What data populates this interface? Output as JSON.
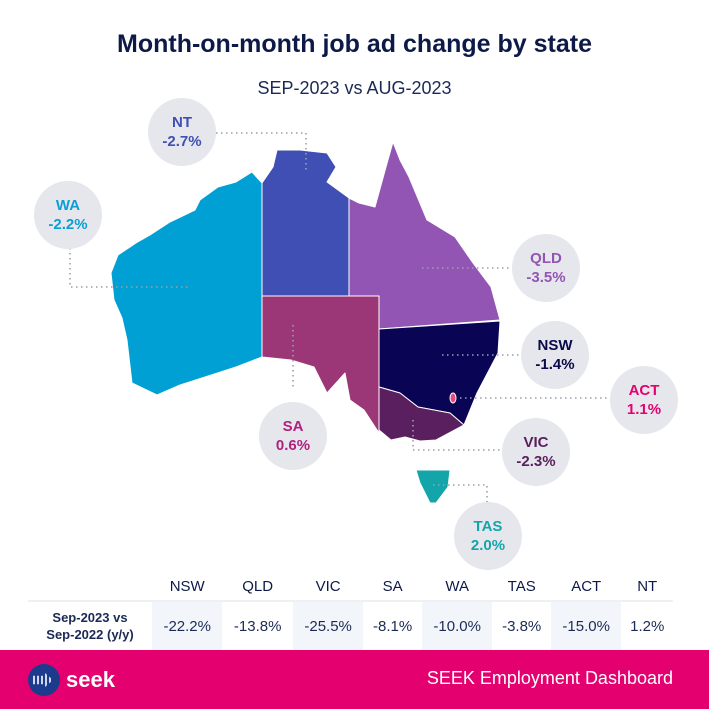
{
  "header": {
    "title": "Month-on-month job ad change by state",
    "subtitle": "SEP-2023 vs AUG-2023"
  },
  "states": {
    "NT": {
      "label": "NT",
      "value": "-2.7%",
      "color": "#3f4fb3",
      "text_color": "#3f4fb3"
    },
    "WA": {
      "label": "WA",
      "value": "-2.2%",
      "color": "#009fd4",
      "text_color": "#0a9fd4"
    },
    "QLD": {
      "label": "QLD",
      "value": "-3.5%",
      "color": "#9355b4",
      "text_color": "#9355b4"
    },
    "NSW": {
      "label": "NSW",
      "value": "-1.4%",
      "color": "#0a0454",
      "text_color": "#0a0a4a"
    },
    "ACT": {
      "label": "ACT",
      "value": "1.1%",
      "color": "#e64a7a",
      "text_color": "#e5006f"
    },
    "VIC": {
      "label": "VIC",
      "value": "-2.3%",
      "color": "#5a1f5e",
      "text_color": "#5a1f5e"
    },
    "SA": {
      "label": "SA",
      "value": "0.6%",
      "color": "#9b3677",
      "text_color": "#b0207f"
    },
    "TAS": {
      "label": "TAS",
      "value": "2.0%",
      "color": "#14a5ab",
      "text_color": "#14a5ab"
    }
  },
  "table": {
    "row_label_line1": "Sep-2023 vs",
    "row_label_line2": "Sep-2022 (y/y)",
    "columns": [
      "NSW",
      "QLD",
      "VIC",
      "SA",
      "WA",
      "TAS",
      "ACT",
      "NT"
    ],
    "values": [
      "-22.2%",
      "-13.8%",
      "-25.5%",
      "-8.1%",
      "-10.0%",
      "-3.8%",
      "-15.0%",
      "1.2%"
    ]
  },
  "footer": {
    "logo_text": "seek",
    "title": "SEEK Employment Dashboard",
    "color": "#e4006f"
  }
}
